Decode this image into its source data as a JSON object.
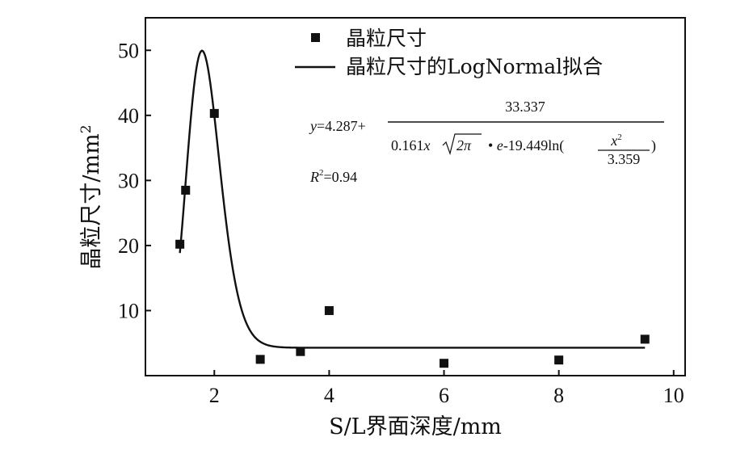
{
  "chart_data": {
    "type": "scatter",
    "xlabel": "S/L界面深度/mm",
    "ylabel": "晶粒尺寸/mm",
    "ylabel_sup": "2",
    "xlim": [
      0.8,
      10.2
    ],
    "ylim": [
      0,
      55
    ],
    "xticks": [
      2,
      4,
      6,
      8,
      10
    ],
    "yticks": [
      10,
      20,
      30,
      40,
      50
    ],
    "legend_position": "top-right",
    "series": [
      {
        "name": "晶粒尺寸",
        "marker": "square",
        "x": [
          1.4,
          1.5,
          2.0,
          2.8,
          3.5,
          4.0,
          6.0,
          8.0,
          9.5
        ],
        "y": [
          20.2,
          28.5,
          40.3,
          2.5,
          3.7,
          10.0,
          1.9,
          2.4,
          5.6
        ]
      },
      {
        "name": "晶粒尺寸的LogNormal拟合",
        "marker": "line",
        "fit": {
          "y0": 4.287,
          "A": 33.337,
          "w": 0.161,
          "xc": 1.8327
        },
        "x_range": [
          1.4,
          9.5
        ]
      }
    ],
    "annotations": {
      "eq_y": "y",
      "eq_eq1": "=4.287+",
      "eq_numerator": "33.337",
      "eq_den_a": "0.161",
      "eq_den_x": "x",
      "eq_den_sqrt": "2π",
      "eq_den_b": "• ",
      "eq_den_e": "e",
      "eq_den_c": "-19.449ln(",
      "eq_inner_num": "x",
      "eq_inner_sup": "2",
      "eq_inner_den": "3.359",
      "eq_close": ")",
      "r2_label": "R",
      "r2_sup": "2",
      "r2_value": "=0.94"
    }
  }
}
